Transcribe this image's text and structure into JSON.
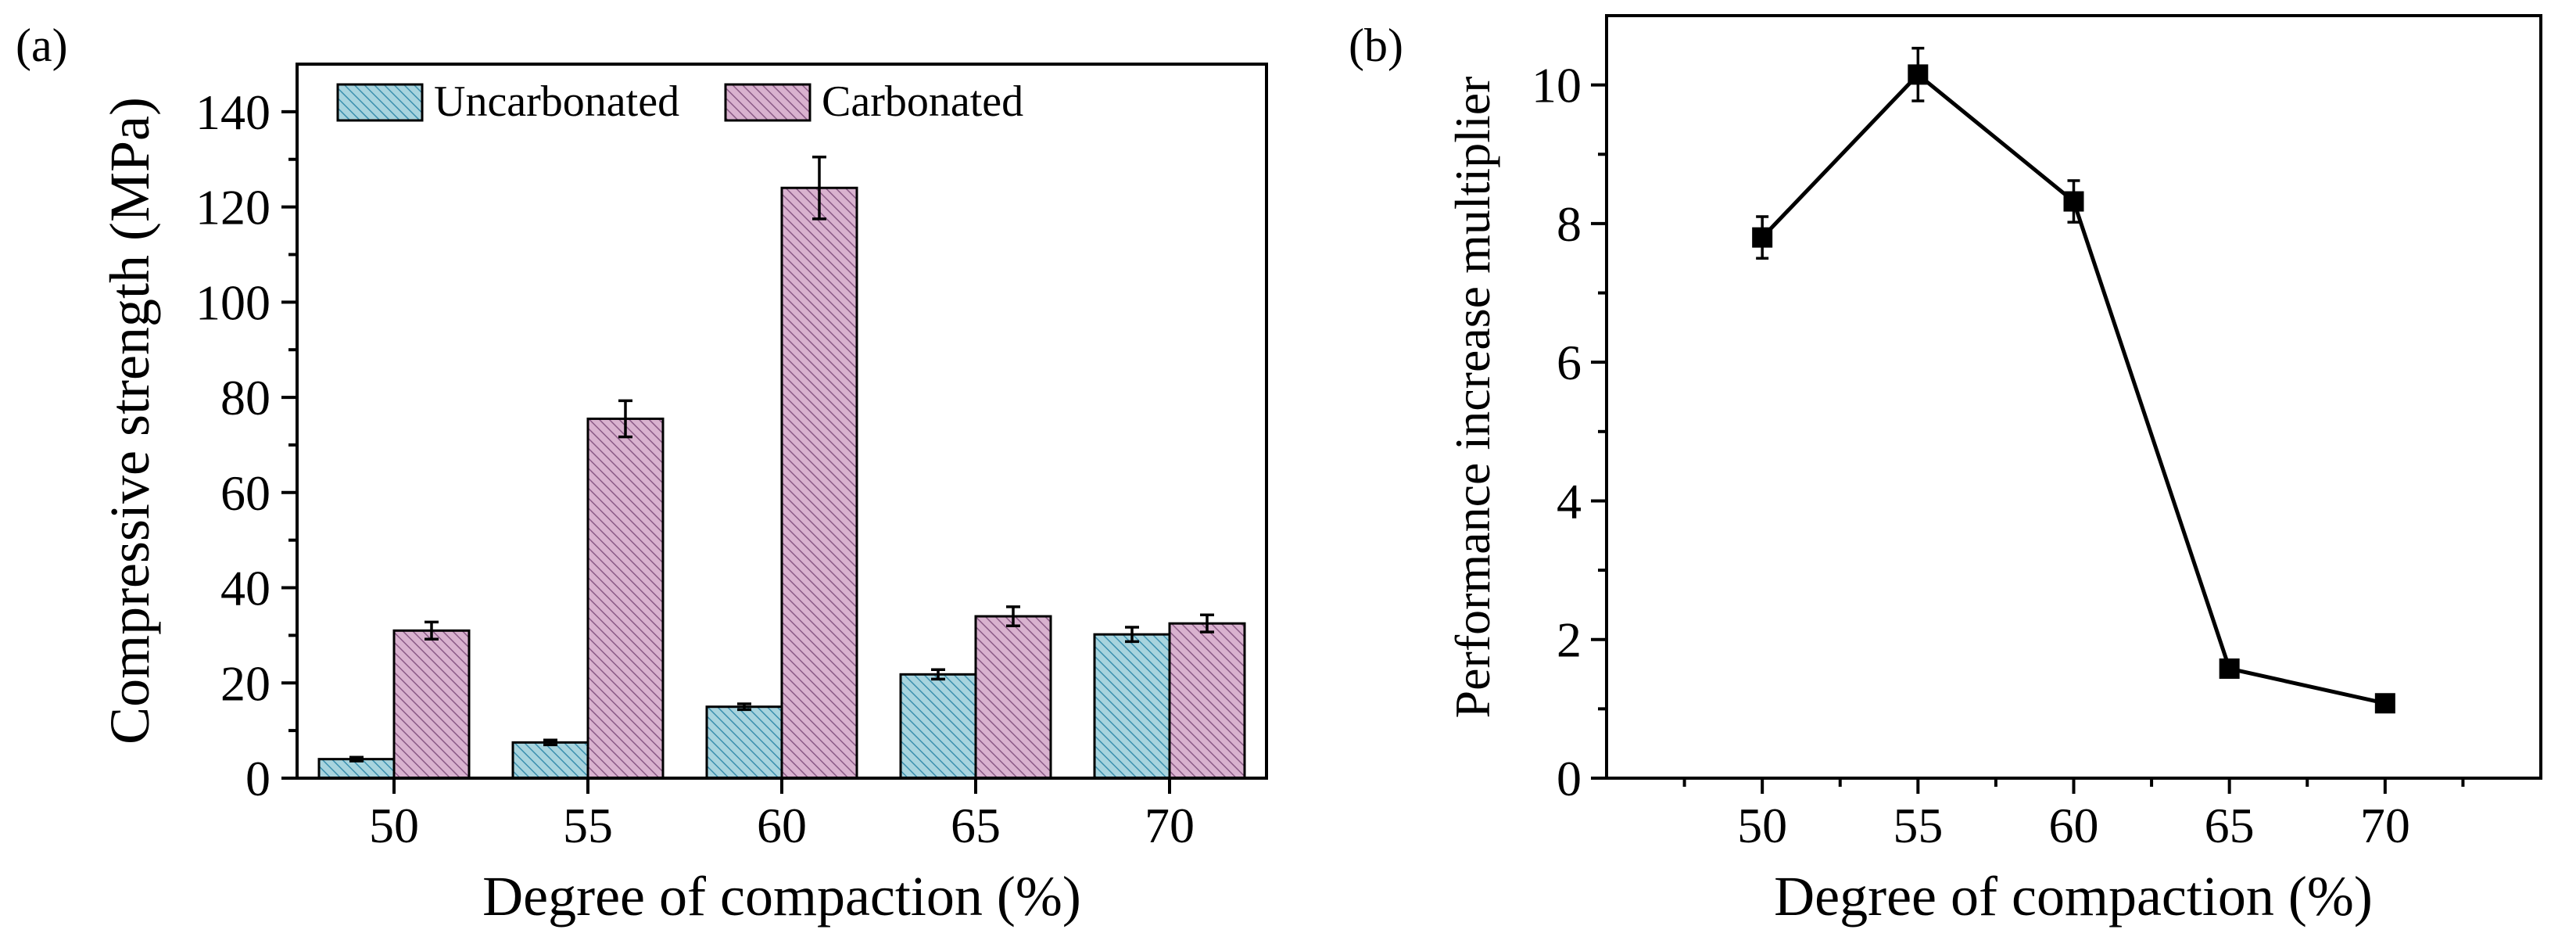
{
  "panels": {
    "a": {
      "label": "(a)"
    },
    "b": {
      "label": "(b)"
    }
  },
  "chart_data": [
    {
      "type": "bar",
      "panel": "(a)",
      "xlabel": "Degree of compaction (%)",
      "ylabel": "Compressive strength (MPa)",
      "categories": [
        "50",
        "55",
        "60",
        "65",
        "70"
      ],
      "ylim": [
        0,
        150
      ],
      "yticks": [
        0,
        20,
        40,
        60,
        80,
        100,
        120,
        140
      ],
      "legend_position": "top",
      "series": [
        {
          "name": "Uncarbonated",
          "color": "#a8d4de",
          "hatch_color": "#3a8fae",
          "values": [
            4.0,
            7.5,
            15.0,
            21.8,
            30.2
          ],
          "errors": [
            0.4,
            0.5,
            0.6,
            1.0,
            1.5
          ]
        },
        {
          "name": "Carbonated",
          "color": "#d9b2cf",
          "hatch_color": "#8a5a86",
          "values": [
            31.0,
            75.5,
            124.0,
            34.0,
            32.5
          ],
          "errors": [
            1.8,
            3.8,
            6.5,
            2.0,
            1.8
          ]
        }
      ]
    },
    {
      "type": "line",
      "panel": "(b)",
      "xlabel": "Degree of compaction (%)",
      "ylabel": "Performance increase multiplier",
      "x": [
        50,
        55,
        60,
        65,
        70
      ],
      "xlim": [
        45,
        75
      ],
      "ylim": [
        0,
        11
      ],
      "xticks": [
        50,
        55,
        60,
        65,
        70
      ],
      "yticks": [
        0,
        2,
        4,
        6,
        8,
        10
      ],
      "marker": "square",
      "series": [
        {
          "values": [
            7.8,
            10.15,
            8.32,
            1.58,
            1.08
          ],
          "errors": [
            0.3,
            0.38,
            0.3,
            0.1,
            0.07
          ]
        }
      ]
    }
  ]
}
